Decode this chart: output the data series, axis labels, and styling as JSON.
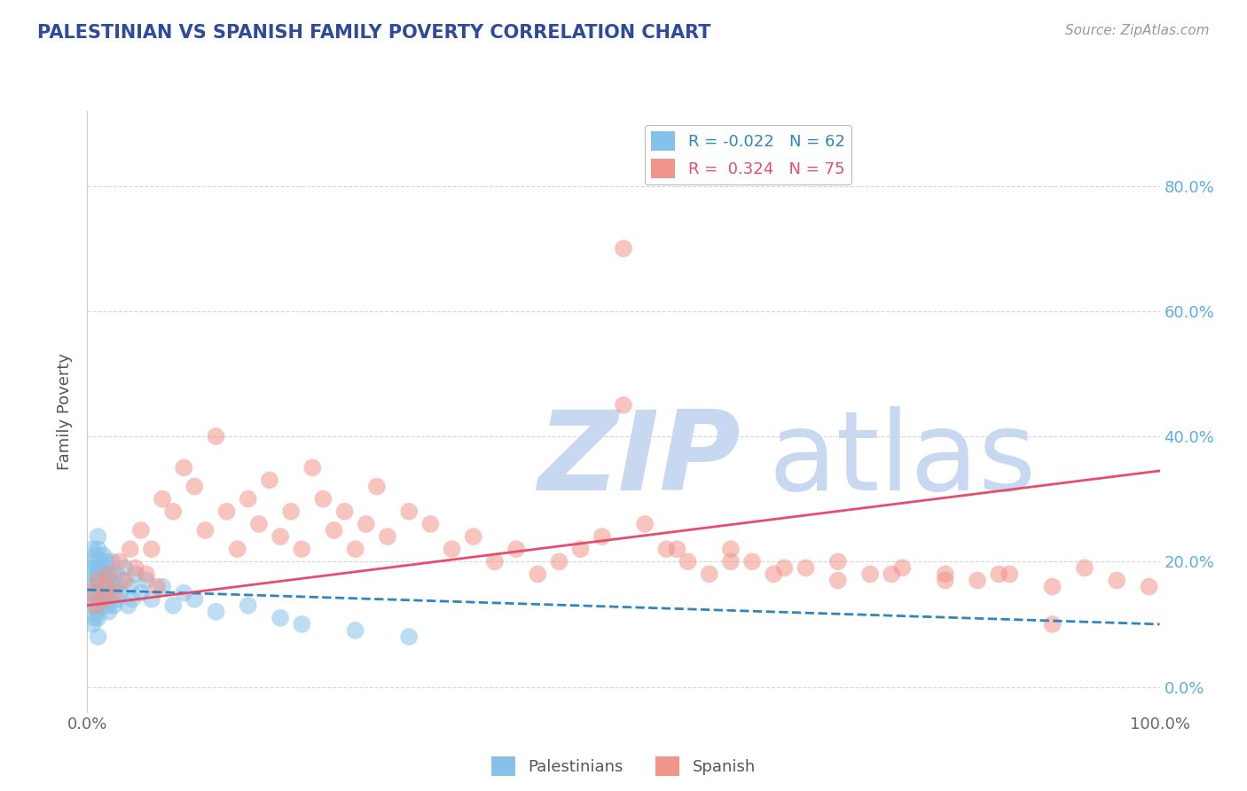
{
  "title": "PALESTINIAN VS SPANISH FAMILY POVERTY CORRELATION CHART",
  "source": "Source: ZipAtlas.com",
  "ylabel": "Family Poverty",
  "legend_label1": "Palestinians",
  "legend_label2": "Spanish",
  "R1": -0.022,
  "N1": 62,
  "R2": 0.324,
  "N2": 75,
  "color_blue": "#85C1E9",
  "color_pink": "#F1948A",
  "color_blue_line": "#2E86C1",
  "color_pink_line": "#E74C6C",
  "color_title": "#2E4B9B",
  "watermark_zip_color": "#C8D8F0",
  "watermark_atlas_color": "#C8D8F0",
  "background_color": "#ffffff",
  "grid_color": "#cccccc",
  "right_axis_color": "#5DADE2",
  "ytick_labels": [
    "0.0%",
    "20.0%",
    "40.0%",
    "60.0%",
    "80.0%"
  ],
  "ytick_values": [
    0.0,
    0.2,
    0.4,
    0.6,
    0.8
  ],
  "xlim": [
    0.0,
    1.0
  ],
  "ylim": [
    -0.04,
    0.92
  ],
  "blue_x": [
    0.005,
    0.005,
    0.005,
    0.005,
    0.005,
    0.007,
    0.007,
    0.007,
    0.007,
    0.008,
    0.008,
    0.008,
    0.009,
    0.009,
    0.01,
    0.01,
    0.01,
    0.01,
    0.01,
    0.01,
    0.01,
    0.012,
    0.012,
    0.013,
    0.013,
    0.014,
    0.015,
    0.015,
    0.016,
    0.016,
    0.017,
    0.018,
    0.019,
    0.02,
    0.02,
    0.02,
    0.022,
    0.023,
    0.025,
    0.025,
    0.027,
    0.028,
    0.03,
    0.032,
    0.035,
    0.038,
    0.04,
    0.042,
    0.045,
    0.05,
    0.055,
    0.06,
    0.07,
    0.08,
    0.09,
    0.1,
    0.12,
    0.15,
    0.18,
    0.2,
    0.25,
    0.3
  ],
  "blue_y": [
    0.22,
    0.19,
    0.16,
    0.13,
    0.1,
    0.2,
    0.17,
    0.14,
    0.11,
    0.21,
    0.18,
    0.15,
    0.19,
    0.12,
    0.24,
    0.22,
    0.19,
    0.17,
    0.14,
    0.11,
    0.08,
    0.2,
    0.16,
    0.18,
    0.13,
    0.15,
    0.21,
    0.17,
    0.19,
    0.14,
    0.16,
    0.2,
    0.13,
    0.18,
    0.15,
    0.12,
    0.17,
    0.2,
    0.16,
    0.13,
    0.18,
    0.14,
    0.15,
    0.17,
    0.19,
    0.13,
    0.16,
    0.14,
    0.18,
    0.15,
    0.17,
    0.14,
    0.16,
    0.13,
    0.15,
    0.14,
    0.12,
    0.13,
    0.11,
    0.1,
    0.09,
    0.08
  ],
  "pink_x": [
    0.005,
    0.008,
    0.01,
    0.015,
    0.018,
    0.02,
    0.025,
    0.03,
    0.035,
    0.04,
    0.045,
    0.05,
    0.055,
    0.06,
    0.065,
    0.07,
    0.08,
    0.09,
    0.1,
    0.11,
    0.12,
    0.13,
    0.14,
    0.15,
    0.16,
    0.17,
    0.18,
    0.19,
    0.2,
    0.21,
    0.22,
    0.23,
    0.24,
    0.25,
    0.26,
    0.27,
    0.28,
    0.3,
    0.32,
    0.34,
    0.36,
    0.38,
    0.4,
    0.42,
    0.44,
    0.46,
    0.48,
    0.5,
    0.52,
    0.54,
    0.56,
    0.58,
    0.6,
    0.62,
    0.64,
    0.67,
    0.7,
    0.73,
    0.76,
    0.8,
    0.83,
    0.86,
    0.9,
    0.93,
    0.96,
    0.99,
    0.5,
    0.55,
    0.6,
    0.65,
    0.7,
    0.75,
    0.8,
    0.85,
    0.9
  ],
  "pink_y": [
    0.15,
    0.13,
    0.17,
    0.14,
    0.16,
    0.18,
    0.15,
    0.2,
    0.17,
    0.22,
    0.19,
    0.25,
    0.18,
    0.22,
    0.16,
    0.3,
    0.28,
    0.35,
    0.32,
    0.25,
    0.4,
    0.28,
    0.22,
    0.3,
    0.26,
    0.33,
    0.24,
    0.28,
    0.22,
    0.35,
    0.3,
    0.25,
    0.28,
    0.22,
    0.26,
    0.32,
    0.24,
    0.28,
    0.26,
    0.22,
    0.24,
    0.2,
    0.22,
    0.18,
    0.2,
    0.22,
    0.24,
    0.7,
    0.26,
    0.22,
    0.2,
    0.18,
    0.22,
    0.2,
    0.18,
    0.19,
    0.2,
    0.18,
    0.19,
    0.18,
    0.17,
    0.18,
    0.16,
    0.19,
    0.17,
    0.16,
    0.45,
    0.22,
    0.2,
    0.19,
    0.17,
    0.18,
    0.17,
    0.18,
    0.1
  ],
  "blue_line_x": [
    0.0,
    1.0
  ],
  "blue_line_y": [
    0.155,
    0.1
  ],
  "pink_line_x": [
    0.0,
    1.0
  ],
  "pink_line_y": [
    0.13,
    0.345
  ]
}
